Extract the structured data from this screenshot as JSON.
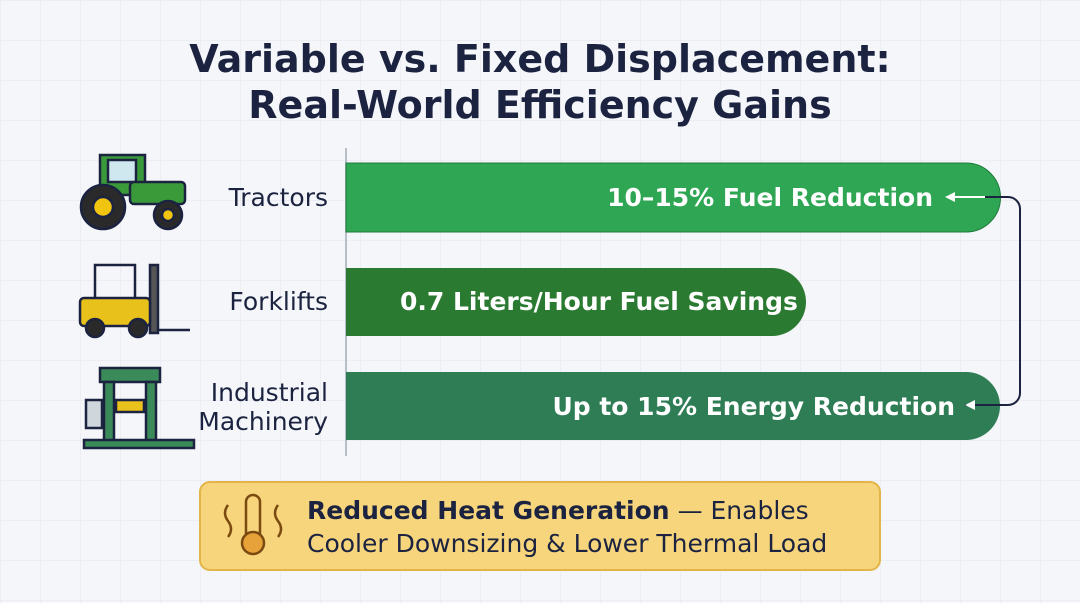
{
  "header": {
    "title_lines": [
      "Variable vs. Fixed Displacement:",
      "Real-World Efficiency Gains"
    ]
  },
  "rows": [
    {
      "label_lines": [
        "Tractors"
      ],
      "bar_text": "10–15% Fuel Reduction"
    },
    {
      "label_lines": [
        "Forklifts"
      ],
      "bar_text": "0.7 Liters/Hour Fuel Savings"
    },
    {
      "label_lines": [
        "Industrial",
        "Machinery"
      ],
      "bar_text": "Up to 15% Energy Reduction"
    }
  ],
  "callout": {
    "bold": "Reduced Heat Generation",
    "line1_rest": "— Enables",
    "line2": "Cooler Downsizing & Lower Thermal Load"
  }
}
